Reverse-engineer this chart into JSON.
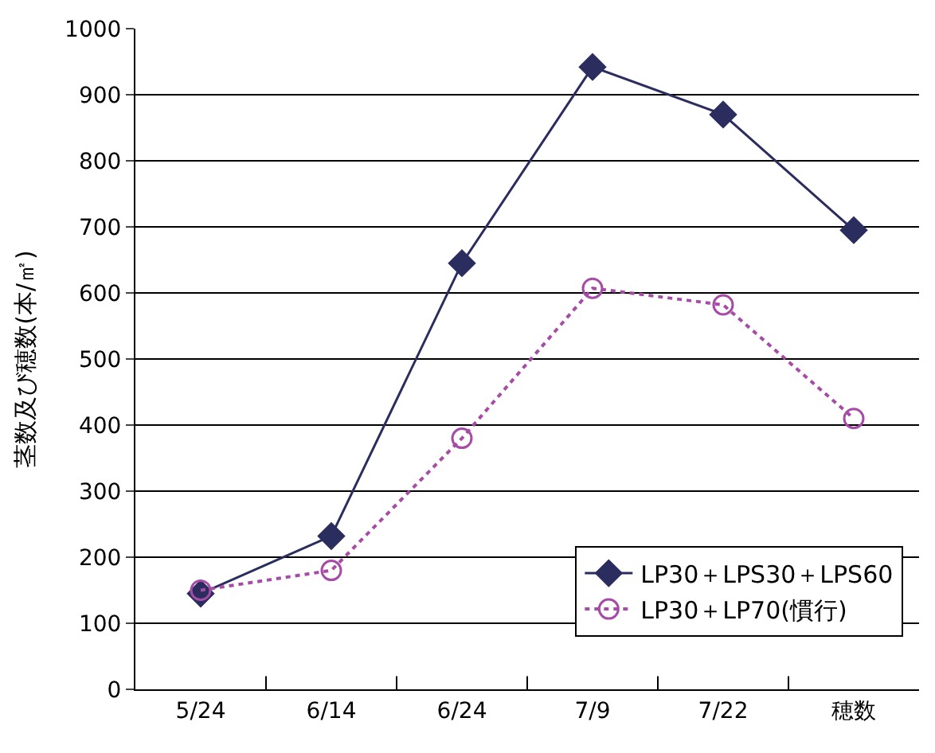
{
  "chart_data": {
    "type": "line",
    "ylabel": "茎数及び穂数(本/㎡)",
    "categories": [
      "5/24",
      "6/14",
      "6/24",
      "7/9",
      "7/22",
      "穂数"
    ],
    "series": [
      {
        "name": "LP30＋LPS30＋LPS60",
        "color": "#2b2d5e",
        "values": [
          145,
          232,
          645,
          942,
          870,
          695
        ],
        "marker": "diamond",
        "line_style": "solid"
      },
      {
        "name": "LP30＋LP70(慣行)",
        "color": "#a64ca6",
        "values": [
          150,
          180,
          380,
          607,
          582,
          410
        ],
        "marker": "circle-open",
        "line_style": "dotted"
      }
    ],
    "ylim": [
      0,
      1000
    ],
    "yticks": [
      0,
      100,
      200,
      300,
      400,
      500,
      600,
      700,
      800,
      900,
      1000
    ],
    "grid": "y",
    "legend": "bottom right"
  }
}
